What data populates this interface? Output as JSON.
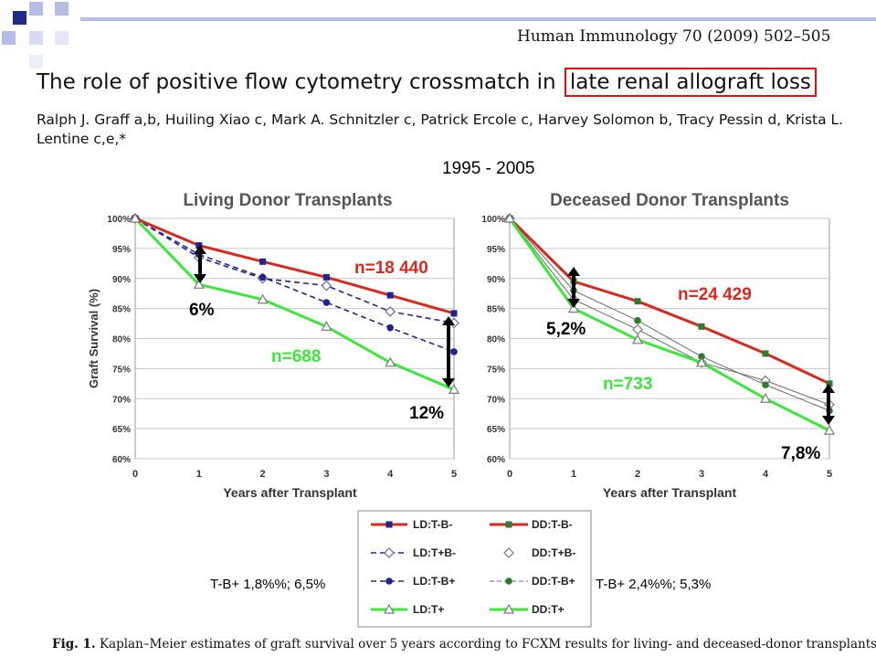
{
  "citation": "Human Immunology 70 (2009) 502–505",
  "title_pre": "The role of positive flow cytometry crossmatch in",
  "title_highlight": "late renal allograft loss",
  "authors": "Ralph J. Graff a,b, Huiling Xiao c, Mark A. Schnitzler c, Patrick Ercole c, Harvey Solomon b, Tracy Pessin d, Krista L. Lentine c,e,*",
  "years": "1995 - 2005",
  "left_note": "T-B+ 1,8%%; 6,5%",
  "right_note": "T-B+ 2,4%%; 5,3%",
  "caption_label": "Fig. 1.",
  "caption_text": "Kaplan–Meier estimates of graft survival over 5 years according to FCXM results for living- and deceased-donor transplants.",
  "colors": {
    "red": "#d42a1f",
    "green": "#3ce63a",
    "navy": "#25288a",
    "gray": "#6a6a6a",
    "dkgreen": "#3f7f3f"
  },
  "chart_data": [
    {
      "type": "line",
      "title": "Living Donor Transplants",
      "xlabel": "Years after Transplant",
      "ylabel": "Graft Survival (%)",
      "x": [
        0,
        1,
        2,
        3,
        4,
        5
      ],
      "x_ticks": [
        "0",
        "1",
        "2",
        "3",
        "4",
        "5"
      ],
      "y_ticks": [
        "100%",
        "95%",
        "90%",
        "85%",
        "80%",
        "75%",
        "70%",
        "65%",
        "60%"
      ],
      "ylim": [
        60,
        100
      ],
      "grid": true,
      "series": [
        {
          "name": "LD:T-B-",
          "values": [
            100,
            95.5,
            92.8,
            90.2,
            87.2,
            84.2
          ]
        },
        {
          "name": "LD:T+B-",
          "values": [
            100,
            93.5,
            90.0,
            88.8,
            84.5,
            82.6
          ]
        },
        {
          "name": "LD:T-B+",
          "values": [
            100,
            94.0,
            90.2,
            86.0,
            81.8,
            77.8
          ]
        },
        {
          "name": "LD:T+",
          "values": [
            100,
            89.0,
            86.5,
            82.0,
            76.0,
            71.5
          ]
        }
      ],
      "annotations": [
        "n=18 440",
        "n=688",
        "6%",
        "12%"
      ]
    },
    {
      "type": "line",
      "title": "Deceased Donor Transplants",
      "xlabel": "Years after Transplant",
      "x": [
        0,
        1,
        2,
        3,
        4,
        5
      ],
      "x_ticks": [
        "0",
        "1",
        "2",
        "3",
        "4",
        "5"
      ],
      "y_ticks": [
        "100%",
        "95%",
        "90%",
        "85%",
        "80%",
        "75%",
        "70%",
        "65%",
        "60%"
      ],
      "ylim": [
        60,
        100
      ],
      "grid": true,
      "series": [
        {
          "name": "DD:T-B-",
          "values": [
            100,
            89.5,
            86.2,
            82.0,
            77.5,
            72.5
          ]
        },
        {
          "name": "DD:T+B-",
          "values": [
            100,
            86.5,
            81.5,
            76.0,
            73.0,
            69.0
          ]
        },
        {
          "name": "DD:T-B+",
          "values": [
            100,
            88.0,
            83.0,
            77.0,
            72.3,
            68.0
          ]
        },
        {
          "name": "DD:T+",
          "values": [
            100,
            85.0,
            79.8,
            76.0,
            70.0,
            64.7
          ]
        }
      ],
      "annotations": [
        "n=24 429",
        "n=733",
        "5,2%",
        "7,8%"
      ]
    }
  ]
}
